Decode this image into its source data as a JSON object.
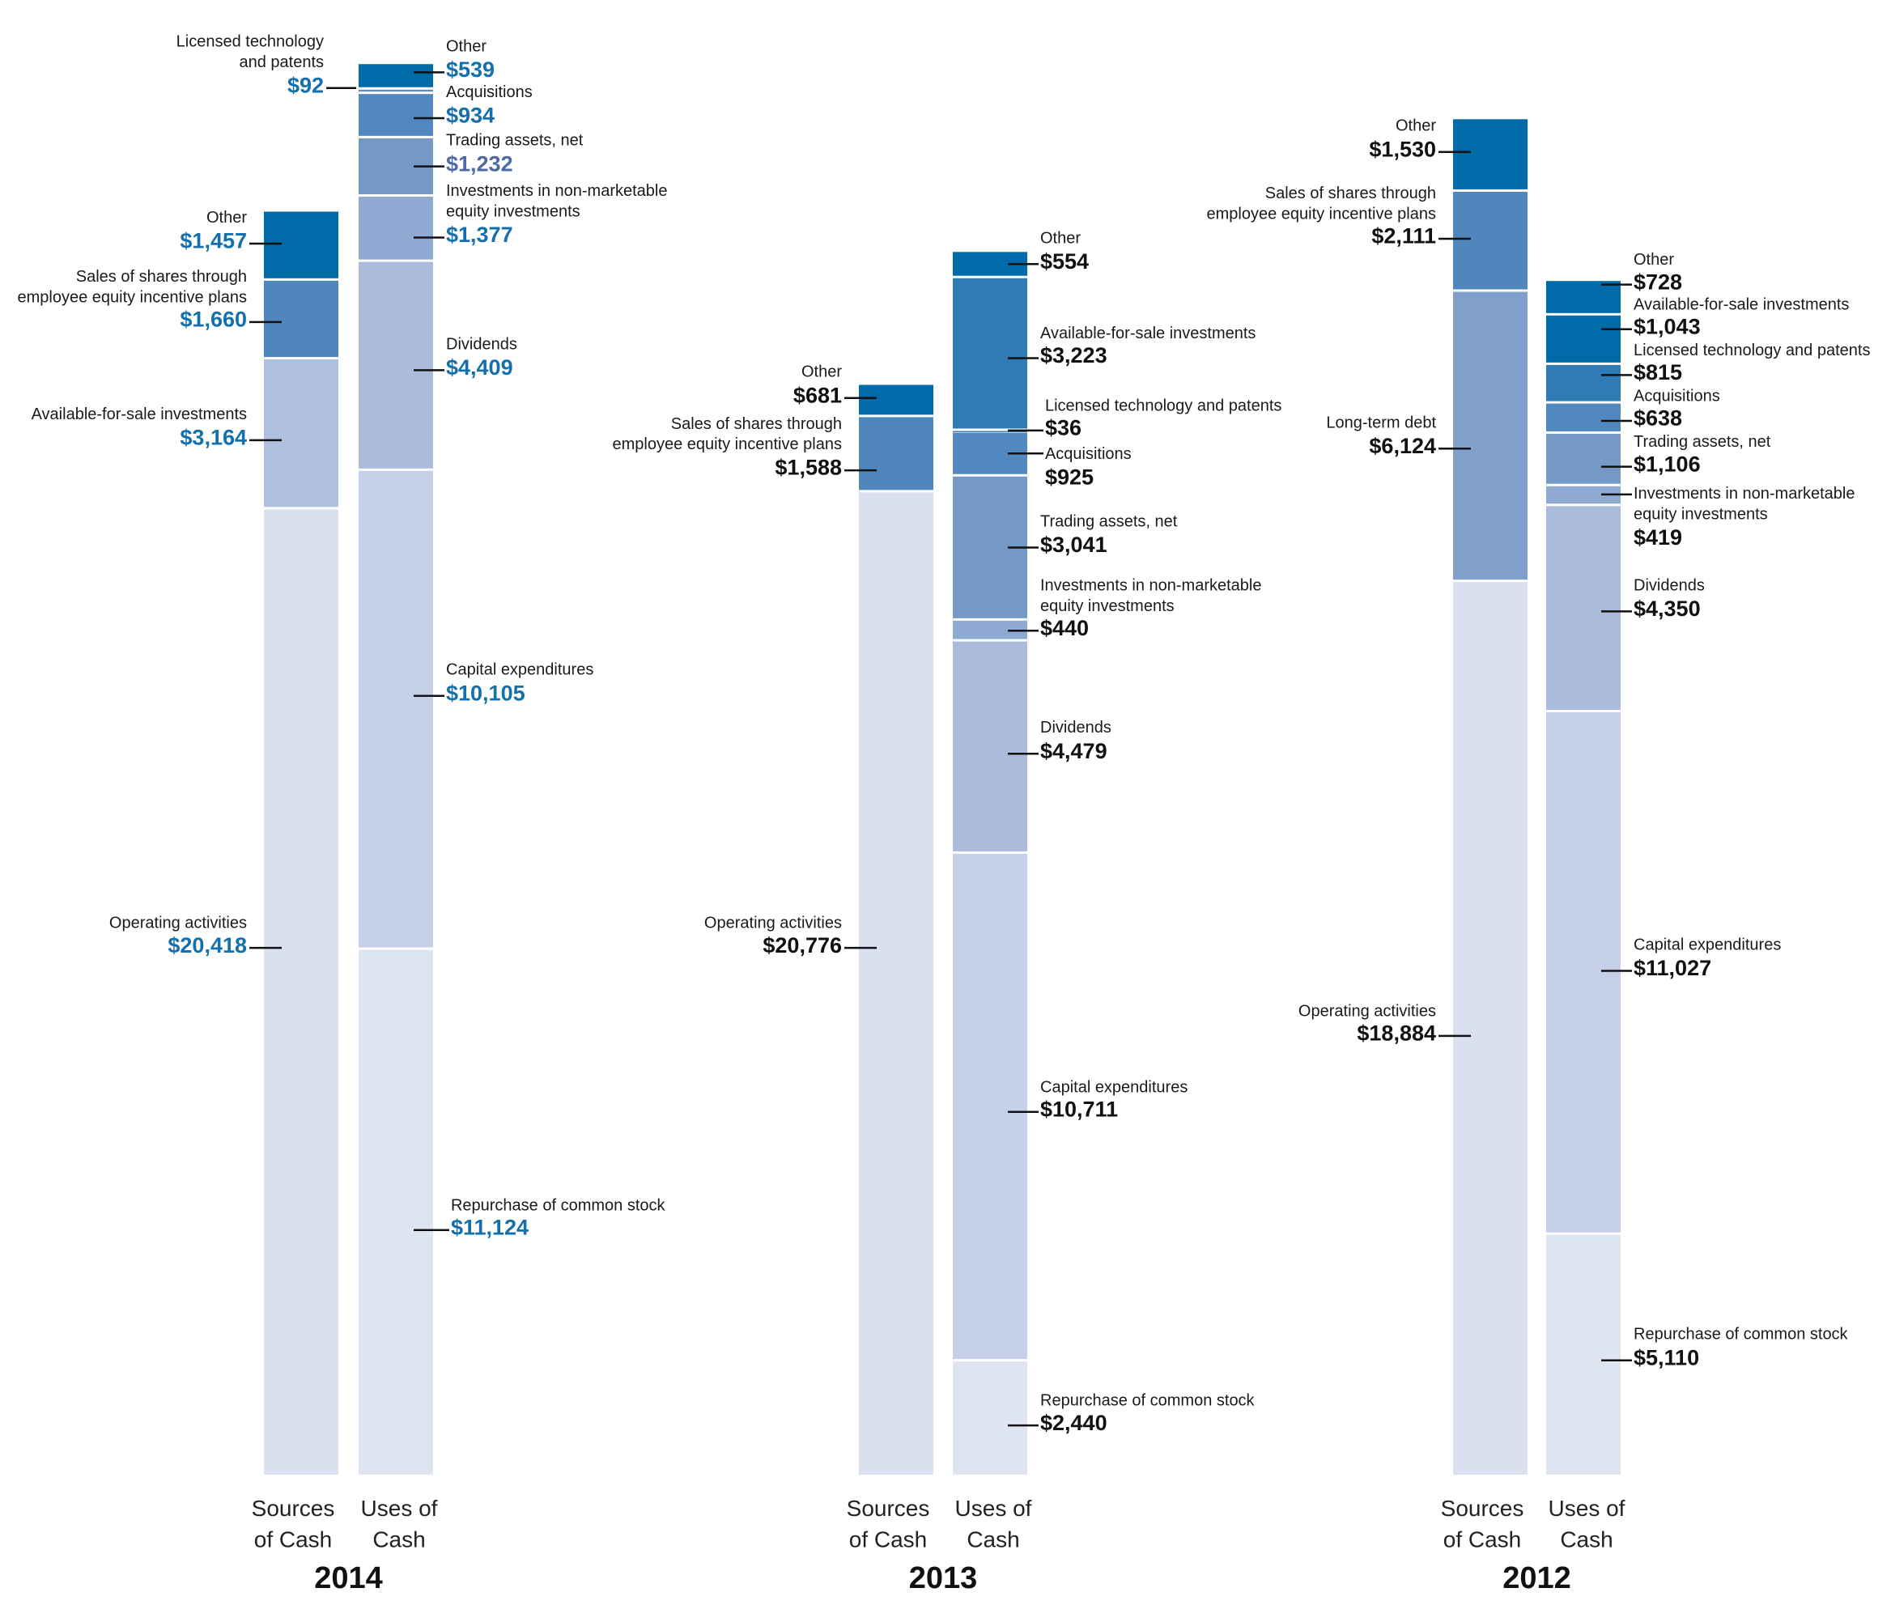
{
  "chart_data": [
    {
      "type": "bar",
      "stacked": true,
      "title": "2014",
      "categories": [
        "Sources of Cash",
        "Uses of Cash"
      ],
      "category_lines": [
        [
          "Sources",
          "of Cash"
        ],
        [
          "Uses of",
          "Cash"
        ]
      ],
      "value_color": "#1470ad",
      "sources": [
        {
          "name": "Operating activities",
          "value": 20418,
          "label": "$20,418",
          "color": "#dbe0f0"
        },
        {
          "name": "Available-for-sale investments",
          "value": 3164,
          "label": "$3,164",
          "color": "#afbfde"
        },
        {
          "name": "Sales of shares through employee equity incentive plans",
          "value": 1660,
          "label": "$1,660",
          "color": "#4f86bb"
        },
        {
          "name": "Other",
          "value": 1457,
          "label": "$1,457",
          "color": "#016aa9"
        }
      ],
      "uses": [
        {
          "name": "Repurchase of common stock",
          "value": 11124,
          "label": "$11,124",
          "color": "#dfe4f1"
        },
        {
          "name": "Capital expenditures",
          "value": 10105,
          "label": "$10,105",
          "color": "#c5cfe7"
        },
        {
          "name": "Dividends",
          "value": 4409,
          "label": "$4,409",
          "color": "#aabbdc"
        },
        {
          "name": "Investments in non-marketable equity investments",
          "value": 1377,
          "label": "$1,377",
          "color": "#8eaad2"
        },
        {
          "name": "Trading assets, net",
          "value": 1232,
          "label": "$1,232",
          "color": "#7499c6",
          "value_color": "#4b6aa6"
        },
        {
          "name": "Acquisitions",
          "value": 934,
          "label": "$934",
          "color": "#5088bf"
        },
        {
          "name": "Licensed technology and patents",
          "value": 92,
          "label": "$92",
          "color": "#5c8dc3"
        },
        {
          "name": "Other",
          "value": 539,
          "label": "$539",
          "color": "#016aa9"
        }
      ]
    },
    {
      "type": "bar",
      "stacked": true,
      "title": "2013",
      "categories": [
        "Sources of Cash",
        "Uses of Cash"
      ],
      "category_lines": [
        [
          "Sources",
          "of Cash"
        ],
        [
          "Uses of",
          "Cash"
        ]
      ],
      "value_color": "#111111",
      "sources": [
        {
          "name": "Operating activities",
          "value": 20776,
          "label": "$20,776",
          "color": "#dbe0f0"
        },
        {
          "name": "Sales of shares through employee equity incentive plans",
          "value": 1588,
          "label": "$1,588",
          "color": "#4f86bb"
        },
        {
          "name": "Other",
          "value": 681,
          "label": "$681",
          "color": "#016aa9"
        }
      ],
      "uses": [
        {
          "name": "Repurchase of common stock",
          "value": 2440,
          "label": "$2,440",
          "color": "#dfe4f1"
        },
        {
          "name": "Capital expenditures",
          "value": 10711,
          "label": "$10,711",
          "color": "#c5cfe7"
        },
        {
          "name": "Dividends",
          "value": 4479,
          "label": "$4,479",
          "color": "#aabbdc"
        },
        {
          "name": "Investments in non-marketable equity investments",
          "value": 440,
          "label": "$440",
          "color": "#8eaad2"
        },
        {
          "name": "Trading assets, net",
          "value": 3041,
          "label": "$3,041",
          "color": "#7499c6"
        },
        {
          "name": "Acquisitions",
          "value": 925,
          "label": "$925",
          "color": "#5088bf"
        },
        {
          "name": "Licensed technology and patents",
          "value": 36,
          "label": "$36",
          "color": "#3f80ba"
        },
        {
          "name": "Available-for-sale investments",
          "value": 3223,
          "label": "$3,223",
          "color": "#2e7bb5"
        },
        {
          "name": "Other",
          "value": 554,
          "label": "$554",
          "color": "#016aa9"
        }
      ]
    },
    {
      "type": "bar",
      "stacked": true,
      "title": "2012",
      "categories": [
        "Sources of Cash",
        "Uses of Cash"
      ],
      "category_lines": [
        [
          "Sources",
          "of Cash"
        ],
        [
          "Uses of",
          "Cash"
        ]
      ],
      "value_color": "#111111",
      "sources": [
        {
          "name": "Operating activities",
          "value": 18884,
          "label": "$18,884",
          "color": "#dbe0f0"
        },
        {
          "name": "Long-term debt",
          "value": 6124,
          "label": "$6,124",
          "color": "#80a0cb"
        },
        {
          "name": "Sales of shares through employee equity incentive plans",
          "value": 2111,
          "label": "$2,111",
          "color": "#4f86bb"
        },
        {
          "name": "Other",
          "value": 1530,
          "label": "$1,530",
          "color": "#016aa9"
        }
      ],
      "uses": [
        {
          "name": "Repurchase of common stock",
          "value": 5110,
          "label": "$5,110",
          "color": "#dfe4f1"
        },
        {
          "name": "Capital expenditures",
          "value": 11027,
          "label": "$11,027",
          "color": "#c5cfe7"
        },
        {
          "name": "Dividends",
          "value": 4350,
          "label": "$4,350",
          "color": "#aabbdc"
        },
        {
          "name": "Investments in non-marketable equity investments",
          "value": 419,
          "label": "$419",
          "color": "#8eaad2"
        },
        {
          "name": "Trading assets, net",
          "value": 1106,
          "label": "$1,106",
          "color": "#7499c6"
        },
        {
          "name": "Acquisitions",
          "value": 638,
          "label": "$638",
          "color": "#5088bf"
        },
        {
          "name": "Licensed technology and patents",
          "value": 815,
          "label": "$815",
          "color": "#2e7bb5"
        },
        {
          "name": "Available-for-sale investments",
          "value": 1043,
          "label": "$1,043",
          "color": "#016aa9"
        },
        {
          "name": "Other",
          "value": 728,
          "label": "$728",
          "color": "#016aa9"
        }
      ]
    }
  ]
}
